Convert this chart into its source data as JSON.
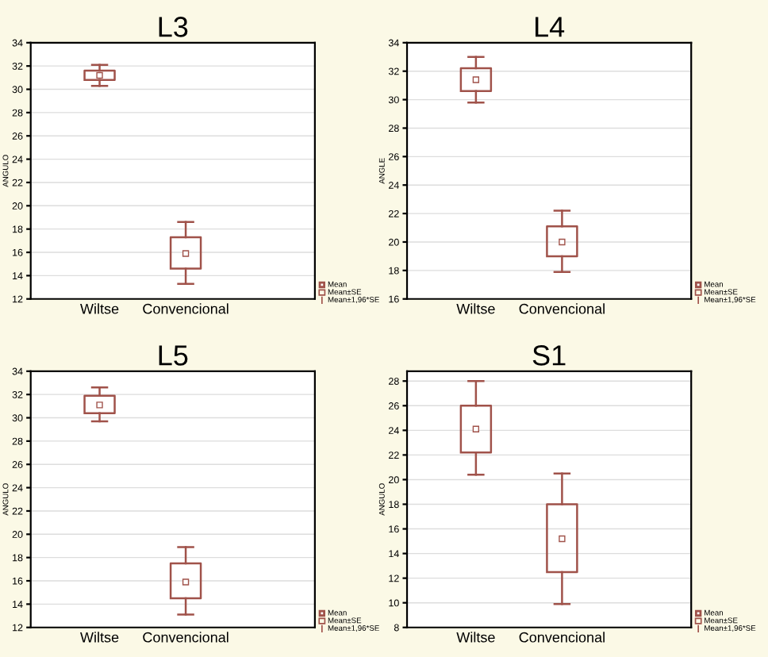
{
  "chart_data": [
    {
      "type": "box",
      "title": "L3",
      "ylabel": "ANGULO",
      "categories": [
        "Wiltse",
        "Convencional"
      ],
      "color": "#a0524a",
      "ylim": [
        12,
        34
      ],
      "yticks": [
        12,
        14,
        16,
        18,
        20,
        22,
        24,
        26,
        28,
        30,
        32,
        34
      ],
      "grid": "y",
      "annotations": [
        "Mean",
        "Mean±SE",
        "Mean±1,96*SE"
      ],
      "boxes": [
        {
          "low": 30.3,
          "q1": 30.8,
          "median": 31.2,
          "q3": 31.6,
          "high": 32.1
        },
        {
          "low": 13.3,
          "q1": 14.6,
          "median": 15.9,
          "q3": 17.3,
          "high": 18.6
        }
      ]
    },
    {
      "type": "box",
      "title": "L4",
      "ylabel": "ANGLE",
      "categories": [
        "Wiltse",
        "Convencional"
      ],
      "color": "#a0524a",
      "ylim": [
        16,
        34
      ],
      "yticks": [
        16,
        18,
        20,
        22,
        24,
        26,
        28,
        30,
        32,
        34
      ],
      "grid": "y",
      "annotations": [
        "Mean",
        "Mean±SE",
        "Mean±1,96*SE"
      ],
      "boxes": [
        {
          "low": 29.8,
          "q1": 30.6,
          "median": 31.4,
          "q3": 32.2,
          "high": 33.0
        },
        {
          "low": 17.9,
          "q1": 19.0,
          "median": 20.0,
          "q3": 21.1,
          "high": 22.2
        }
      ]
    },
    {
      "type": "box",
      "title": "L5",
      "ylabel": "ANGULO",
      "categories": [
        "Wiltse",
        "Convencional"
      ],
      "color": "#a0524a",
      "ylim": [
        12,
        34
      ],
      "yticks": [
        12,
        14,
        16,
        18,
        20,
        22,
        24,
        26,
        28,
        30,
        32,
        34
      ],
      "grid": "y",
      "annotations": [
        "Mean",
        "Mean±SE",
        "Mean±1,96*SE"
      ],
      "boxes": [
        {
          "low": 29.7,
          "q1": 30.4,
          "median": 31.1,
          "q3": 31.9,
          "high": 32.6
        },
        {
          "low": 13.1,
          "q1": 14.5,
          "median": 15.9,
          "q3": 17.5,
          "high": 18.9
        }
      ]
    },
    {
      "type": "box",
      "title": "S1",
      "ylabel": "ANGULO",
      "categories": [
        "Wiltse",
        "Convencional"
      ],
      "color": "#a0524a",
      "ylim": [
        8,
        28.8
      ],
      "yticks": [
        8,
        10,
        12,
        14,
        16,
        18,
        20,
        22,
        24,
        26,
        28
      ],
      "grid": "y",
      "annotations": [
        "Mean",
        "Mean±SE",
        "Mean±1,96*SE"
      ],
      "boxes": [
        {
          "low": 20.4,
          "q1": 22.2,
          "median": 24.1,
          "q3": 26.0,
          "high": 28.0
        },
        {
          "low": 9.9,
          "q1": 12.5,
          "median": 15.2,
          "q3": 18.0,
          "high": 20.5
        }
      ]
    }
  ]
}
